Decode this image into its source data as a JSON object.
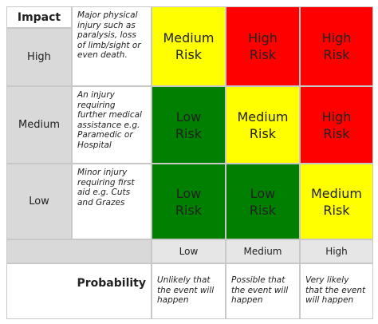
{
  "table": {
    "impact_header": "Impact",
    "rows": [
      {
        "label": "High",
        "description": "Major physical injury such as paralysis, loss of limb/sight or even death.",
        "cells": [
          "Medium Risk",
          "High Risk",
          "High Risk"
        ]
      },
      {
        "label": "Medium",
        "description": "An injury requiring further medical assistance e.g. Paramedic or Hospital",
        "cells": [
          "Low Risk",
          "Medium Risk",
          "High Risk"
        ]
      },
      {
        "label": "Low",
        "description": "Minor injury requiring first aid e.g. Cuts and Grazes",
        "cells": [
          "Low Risk",
          "Low Risk",
          "Medium Risk"
        ]
      }
    ],
    "probability": {
      "label": "Probability",
      "levels": [
        {
          "label": "Low",
          "description": "Unlikely that the event will happen"
        },
        {
          "label": "Medium",
          "description": "Possible that the event will happen"
        },
        {
          "label": "High",
          "description": "Very likely that the event will happen"
        }
      ]
    }
  }
}
